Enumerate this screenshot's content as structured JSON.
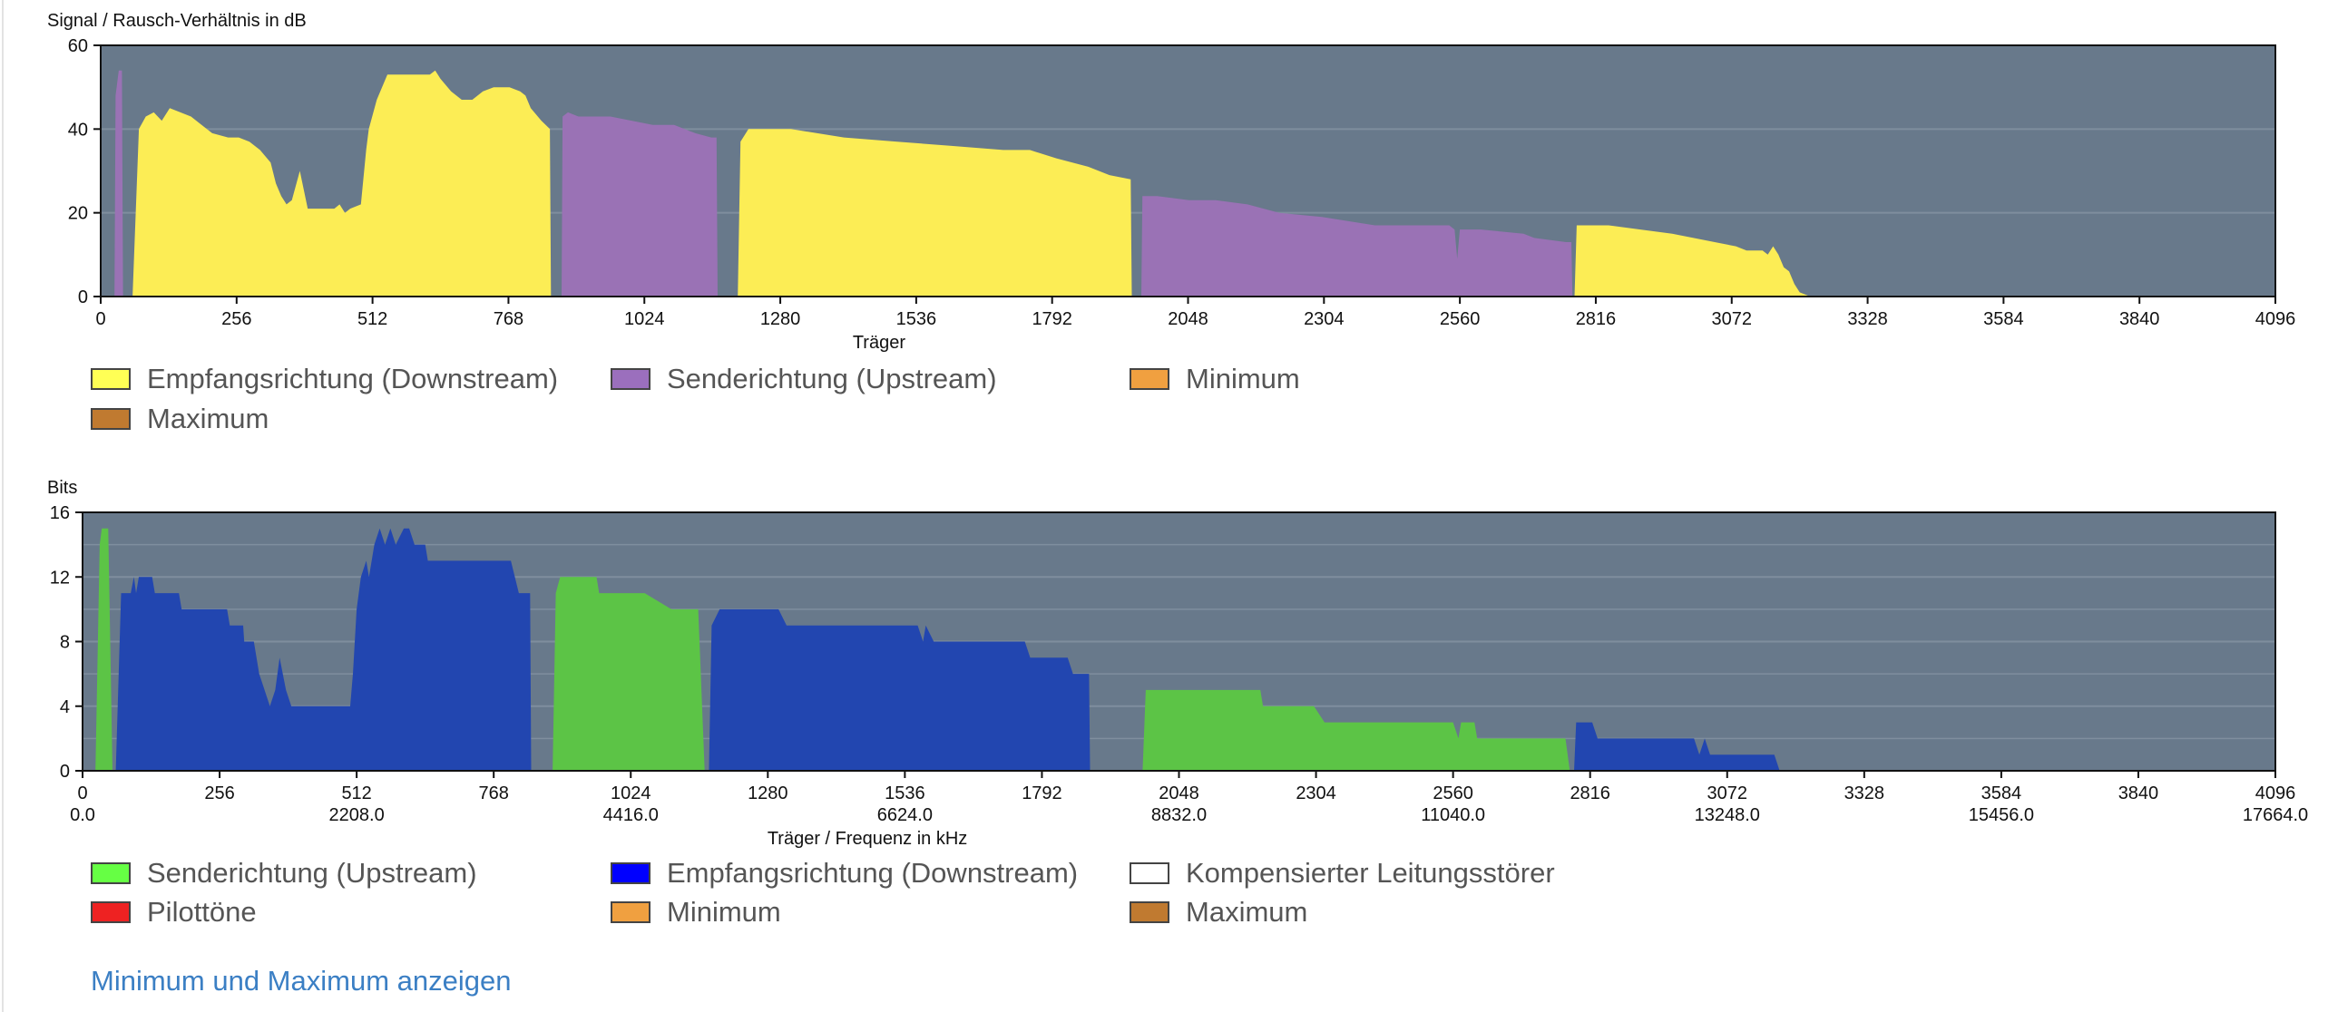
{
  "snr_chart": {
    "legend": [
      {
        "label": "Empfangsrichtung (Downstream)",
        "color": "#ffff55"
      },
      {
        "label": "Senderichtung (Upstream)",
        "color": "#9b6fbd"
      },
      {
        "label": "Minimum",
        "color": "#f0a040"
      },
      {
        "label": "Maximum",
        "color": "#c07a30"
      }
    ]
  },
  "bits_chart": {
    "legend": [
      {
        "label": "Senderichtung (Upstream)",
        "color": "#66ff44"
      },
      {
        "label": "Empfangsrichtung (Downstream)",
        "color": "#0000ff"
      },
      {
        "label": "Kompensierter Leitungsstörer",
        "color": "#ffffff"
      },
      {
        "label": "Pilottöne",
        "color": "#ee2222"
      },
      {
        "label": "Minimum",
        "color": "#f0a040"
      },
      {
        "label": "Maximum",
        "color": "#c07a30"
      }
    ]
  },
  "toggle_link": "Minimum und Maximum anzeigen",
  "colors": {
    "plot_background": "#68798b",
    "gridline": "#7f8e9e",
    "snr_downstream": "#fced55",
    "snr_upstream": "#9a72b5",
    "bits_upstream": "#5cc446",
    "bits_downstream": "#2246b0"
  },
  "chart_data": [
    {
      "type": "area",
      "title": "",
      "ylabel": "Signal / Rausch-Verhältnis in dB",
      "xlabel": "Träger",
      "xlim": [
        0,
        4096
      ],
      "ylim": [
        0,
        60
      ],
      "yticks": [
        0,
        20,
        40,
        60
      ],
      "xticks": [
        0,
        256,
        512,
        768,
        1024,
        1280,
        1536,
        1792,
        2048,
        2304,
        2560,
        2816,
        3072,
        3328,
        3584,
        3840,
        4096
      ],
      "grid": true,
      "series": [
        {
          "name": "Senderichtung (Upstream)",
          "color": "#9a72b5",
          "segments": [
            [
              [
                26,
                0
              ],
              [
                28,
                48
              ],
              [
                34,
                54
              ],
              [
                40,
                54
              ],
              [
                42,
                0
              ]
            ],
            [
              [
                868,
                0
              ],
              [
                870,
                43
              ],
              [
                880,
                44
              ],
              [
                900,
                43
              ],
              [
                960,
                43
              ],
              [
                1000,
                42
              ],
              [
                1040,
                41
              ],
              [
                1080,
                41
              ],
              [
                1120,
                39
              ],
              [
                1150,
                38
              ],
              [
                1160,
                38
              ],
              [
                1162,
                0
              ]
            ],
            [
              [
                1960,
                0
              ],
              [
                1962,
                24
              ],
              [
                1990,
                24
              ],
              [
                2050,
                23
              ],
              [
                2100,
                23
              ],
              [
                2160,
                22
              ],
              [
                2220,
                20
              ],
              [
                2300,
                19
              ],
              [
                2400,
                17
              ],
              [
                2500,
                17
              ],
              [
                2540,
                17
              ],
              [
                2550,
                16
              ],
              [
                2555,
                9
              ],
              [
                2560,
                16
              ],
              [
                2600,
                16
              ],
              [
                2680,
                15
              ],
              [
                2700,
                14
              ],
              [
                2760,
                13
              ],
              [
                2770,
                13
              ],
              [
                2772,
                0
              ]
            ]
          ]
        },
        {
          "name": "Empfangsrichtung (Downstream)",
          "color": "#fced55",
          "segments": [
            [
              [
                60,
                0
              ],
              [
                72,
                40
              ],
              [
                85,
                43
              ],
              [
                100,
                44
              ],
              [
                115,
                42
              ],
              [
                130,
                45
              ],
              [
                150,
                44
              ],
              [
                170,
                43
              ],
              [
                190,
                41
              ],
              [
                210,
                39
              ],
              [
                240,
                38
              ],
              [
                260,
                38
              ],
              [
                280,
                37
              ],
              [
                300,
                35
              ],
              [
                320,
                32
              ],
              [
                330,
                27
              ],
              [
                340,
                24
              ],
              [
                350,
                22
              ],
              [
                360,
                23
              ],
              [
                375,
                30
              ],
              [
                390,
                21
              ],
              [
                420,
                21
              ],
              [
                440,
                21
              ],
              [
                450,
                22
              ],
              [
                460,
                20
              ],
              [
                470,
                21
              ],
              [
                490,
                22
              ],
              [
                500,
                35
              ],
              [
                505,
                40
              ],
              [
                520,
                47
              ],
              [
                540,
                53
              ],
              [
                580,
                53
              ],
              [
                600,
                53
              ],
              [
                620,
                53
              ],
              [
                630,
                54
              ],
              [
                640,
                52
              ],
              [
                660,
                49
              ],
              [
                680,
                47
              ],
              [
                700,
                47
              ],
              [
                720,
                49
              ],
              [
                740,
                50
              ],
              [
                770,
                50
              ],
              [
                790,
                49
              ],
              [
                800,
                48
              ],
              [
                810,
                45
              ],
              [
                830,
                42
              ],
              [
                846,
                40
              ],
              [
                848,
                0
              ]
            ],
            [
              [
                1200,
                0
              ],
              [
                1205,
                37
              ],
              [
                1220,
                40
              ],
              [
                1260,
                40
              ],
              [
                1300,
                40
              ],
              [
                1400,
                38
              ],
              [
                1500,
                37
              ],
              [
                1600,
                36
              ],
              [
                1700,
                35
              ],
              [
                1750,
                35
              ],
              [
                1800,
                33
              ],
              [
                1860,
                31
              ],
              [
                1900,
                29
              ],
              [
                1940,
                28
              ],
              [
                1942,
                0
              ]
            ],
            [
              [
                2776,
                0
              ],
              [
                2780,
                17
              ],
              [
                2840,
                17
              ],
              [
                2900,
                16
              ],
              [
                2960,
                15
              ],
              [
                3000,
                14
              ],
              [
                3040,
                13
              ],
              [
                3080,
                12
              ],
              [
                3100,
                11
              ],
              [
                3130,
                11
              ],
              [
                3140,
                10
              ],
              [
                3150,
                12
              ],
              [
                3160,
                10
              ],
              [
                3170,
                7
              ],
              [
                3180,
                6
              ],
              [
                3190,
                3
              ],
              [
                3200,
                1
              ],
              [
                3220,
                0
              ]
            ]
          ]
        }
      ]
    },
    {
      "type": "area",
      "title": "",
      "ylabel": "Bits",
      "xlabel": "Träger / Frequenz in kHz",
      "xlim": [
        0,
        4096
      ],
      "ylim": [
        0,
        16
      ],
      "yticks": [
        0,
        4,
        8,
        12,
        16
      ],
      "xticks": [
        0,
        256,
        512,
        768,
        1024,
        1280,
        1536,
        1792,
        2048,
        2304,
        2560,
        2816,
        3072,
        3328,
        3584,
        3840,
        4096
      ],
      "x2ticks": [
        {
          "at": 0,
          "label": "0.0"
        },
        {
          "at": 512,
          "label": "2208.0"
        },
        {
          "at": 1024,
          "label": "4416.0"
        },
        {
          "at": 1536,
          "label": "6624.0"
        },
        {
          "at": 2048,
          "label": "8832.0"
        },
        {
          "at": 2560,
          "label": "11040.0"
        },
        {
          "at": 3072,
          "label": "13248.0"
        },
        {
          "at": 3584,
          "label": "15456.0"
        },
        {
          "at": 4096,
          "label": "17664.0"
        }
      ],
      "grid": true,
      "series": [
        {
          "name": "Senderichtung (Upstream)",
          "color": "#5cc446",
          "segments": [
            [
              [
                24,
                0
              ],
              [
                32,
                14
              ],
              [
                36,
                15
              ],
              [
                48,
                15
              ],
              [
                56,
                0
              ]
            ],
            [
              [
                878,
                0
              ],
              [
                884,
                11
              ],
              [
                892,
                12
              ],
              [
                960,
                12
              ],
              [
                965,
                11
              ],
              [
                1050,
                11
              ],
              [
                1100,
                10
              ],
              [
                1120,
                10
              ],
              [
                1150,
                10
              ],
              [
                1162,
                0
              ]
            ],
            [
              [
                1980,
                0
              ],
              [
                1986,
                5
              ],
              [
                2100,
                5
              ],
              [
                2200,
                5
              ],
              [
                2205,
                4
              ],
              [
                2300,
                4
              ],
              [
                2320,
                3
              ],
              [
                2560,
                3
              ],
              [
                2570,
                2
              ],
              [
                2575,
                3
              ],
              [
                2600,
                3
              ],
              [
                2605,
                2
              ],
              [
                2770,
                2
              ],
              [
                2778,
                0
              ]
            ]
          ]
        },
        {
          "name": "Empfangsrichtung (Downstream)",
          "color": "#2246b0",
          "segments": [
            [
              [
                62,
                0
              ],
              [
                72,
                11
              ],
              [
                90,
                11
              ],
              [
                96,
                12
              ],
              [
                100,
                11
              ],
              [
                105,
                12
              ],
              [
                130,
                12
              ],
              [
                135,
                11
              ],
              [
                180,
                11
              ],
              [
                185,
                10
              ],
              [
                270,
                10
              ],
              [
                275,
                9
              ],
              [
                300,
                9
              ],
              [
                302,
                8
              ],
              [
                320,
                8
              ],
              [
                330,
                6
              ],
              [
                340,
                5
              ],
              [
                350,
                4
              ],
              [
                360,
                5
              ],
              [
                368,
                7
              ],
              [
                380,
                5
              ],
              [
                390,
                4
              ],
              [
                500,
                4
              ],
              [
                505,
                6
              ],
              [
                512,
                10
              ],
              [
                520,
                12
              ],
              [
                530,
                13
              ],
              [
                535,
                12
              ],
              [
                545,
                14
              ],
              [
                555,
                15
              ],
              [
                565,
                14
              ],
              [
                575,
                15
              ],
              [
                585,
                14
              ],
              [
                600,
                15
              ],
              [
                610,
                15
              ],
              [
                620,
                14
              ],
              [
                640,
                14
              ],
              [
                645,
                13
              ],
              [
                800,
                13
              ],
              [
                815,
                11
              ],
              [
                825,
                11
              ],
              [
                836,
                11
              ],
              [
                838,
                0
              ]
            ],
            [
              [
                1170,
                0
              ],
              [
                1175,
                9
              ],
              [
                1190,
                10
              ],
              [
                1300,
                10
              ],
              [
                1315,
                9
              ],
              [
                1560,
                9
              ],
              [
                1570,
                8
              ],
              [
                1575,
                9
              ],
              [
                1590,
                8
              ],
              [
                1760,
                8
              ],
              [
                1770,
                7
              ],
              [
                1840,
                7
              ],
              [
                1850,
                6
              ],
              [
                1880,
                6
              ],
              [
                1882,
                0
              ]
            ],
            [
              [
                2786,
                0
              ],
              [
                2790,
                3
              ],
              [
                2820,
                3
              ],
              [
                2830,
                2
              ],
              [
                3010,
                2
              ],
              [
                3020,
                1
              ],
              [
                3030,
                2
              ],
              [
                3040,
                1
              ],
              [
                3160,
                1
              ],
              [
                3170,
                0
              ]
            ]
          ]
        }
      ]
    }
  ]
}
